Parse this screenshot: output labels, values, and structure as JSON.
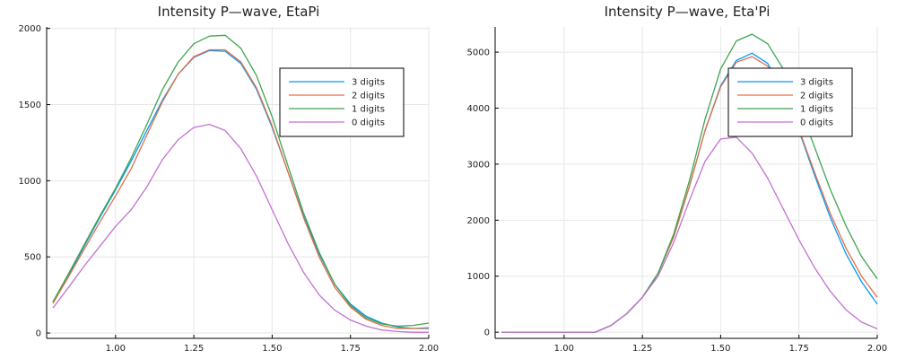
{
  "chart_data": [
    {
      "type": "line",
      "title": "Intensity P—wave, EtaPi",
      "xlabel": "",
      "ylabel": "",
      "xlim": [
        0.78,
        2.0
      ],
      "ylim": [
        -35,
        2010
      ],
      "xticks": [
        1.0,
        1.25,
        1.5,
        1.75,
        2.0
      ],
      "xtick_labels": [
        "1.00",
        "1.25",
        "1.50",
        "1.75",
        "2.00"
      ],
      "yticks": [
        0,
        500,
        1000,
        1500,
        2000
      ],
      "ytick_labels": [
        "0",
        "500",
        "1000",
        "1500",
        "2000"
      ],
      "grid": true,
      "legend_position": "top-right",
      "x": [
        0.8,
        0.85,
        0.9,
        0.95,
        1.0,
        1.05,
        1.1,
        1.15,
        1.2,
        1.25,
        1.3,
        1.35,
        1.4,
        1.45,
        1.5,
        1.55,
        1.6,
        1.65,
        1.7,
        1.75,
        1.8,
        1.85,
        1.9,
        1.95,
        2.0
      ],
      "series": [
        {
          "name": "3 digits",
          "color": "#009AFA",
          "values": [
            200,
            380,
            570,
            760,
            940,
            1130,
            1330,
            1530,
            1700,
            1810,
            1855,
            1850,
            1770,
            1600,
            1350,
            1060,
            770,
            520,
            320,
            190,
            110,
            65,
            40,
            30,
            30
          ]
        },
        {
          "name": "2 digits",
          "color": "#E36F47",
          "values": [
            195,
            370,
            550,
            730,
            900,
            1080,
            1300,
            1520,
            1700,
            1815,
            1860,
            1860,
            1780,
            1610,
            1360,
            1060,
            760,
            500,
            300,
            170,
            90,
            50,
            30,
            30,
            35
          ]
        },
        {
          "name": "1 digits",
          "color": "#3EA44E",
          "values": [
            205,
            390,
            580,
            770,
            950,
            1150,
            1370,
            1600,
            1780,
            1900,
            1950,
            1955,
            1870,
            1690,
            1420,
            1100,
            790,
            530,
            320,
            180,
            100,
            60,
            45,
            50,
            65
          ]
        },
        {
          "name": "0 digits",
          "color": "#C371D2",
          "values": [
            165,
            300,
            440,
            570,
            700,
            810,
            960,
            1140,
            1270,
            1350,
            1370,
            1330,
            1210,
            1030,
            810,
            590,
            400,
            250,
            150,
            85,
            45,
            20,
            10,
            5,
            5
          ]
        }
      ]
    },
    {
      "type": "line",
      "title": "Intensity P—wave, Eta'Pi",
      "xlabel": "",
      "ylabel": "",
      "xlim": [
        0.78,
        2.0
      ],
      "ylim": [
        -110,
        5450
      ],
      "xticks": [
        1.0,
        1.25,
        1.5,
        1.75,
        2.0
      ],
      "xtick_labels": [
        "1.00",
        "1.25",
        "1.50",
        "1.75",
        "2.00"
      ],
      "yticks": [
        0,
        1000,
        2000,
        3000,
        4000,
        5000
      ],
      "ytick_labels": [
        "0",
        "1000",
        "2000",
        "3000",
        "4000",
        "5000"
      ],
      "grid": true,
      "legend_position": "top-right",
      "x": [
        0.8,
        0.85,
        0.9,
        0.95,
        1.0,
        1.05,
        1.1,
        1.15,
        1.2,
        1.25,
        1.3,
        1.35,
        1.4,
        1.45,
        1.5,
        1.55,
        1.6,
        1.65,
        1.7,
        1.75,
        1.8,
        1.85,
        1.9,
        1.95,
        2.0
      ],
      "series": [
        {
          "name": "3 digits",
          "color": "#009AFA",
          "values": [
            0,
            0,
            0,
            0,
            0,
            0,
            0,
            120,
            330,
            620,
            1050,
            1700,
            2600,
            3600,
            4400,
            4850,
            4980,
            4800,
            4300,
            3600,
            2800,
            2050,
            1400,
            900,
            500
          ]
        },
        {
          "name": "2 digits",
          "color": "#E36F47",
          "values": [
            0,
            0,
            0,
            0,
            0,
            0,
            0,
            120,
            330,
            620,
            1050,
            1700,
            2600,
            3600,
            4380,
            4820,
            4920,
            4750,
            4300,
            3620,
            2850,
            2120,
            1500,
            1000,
            620
          ]
        },
        {
          "name": "1 digits",
          "color": "#3EA44E",
          "values": [
            0,
            0,
            0,
            0,
            0,
            0,
            0,
            120,
            330,
            620,
            1050,
            1750,
            2700,
            3800,
            4700,
            5200,
            5320,
            5150,
            4700,
            4050,
            3300,
            2550,
            1900,
            1350,
            950
          ]
        },
        {
          "name": "0 digits",
          "color": "#C371D2",
          "values": [
            0,
            0,
            0,
            0,
            0,
            0,
            0,
            120,
            330,
            620,
            1000,
            1600,
            2350,
            3050,
            3450,
            3480,
            3200,
            2750,
            2200,
            1650,
            1150,
            730,
            400,
            180,
            60
          ]
        }
      ]
    }
  ]
}
